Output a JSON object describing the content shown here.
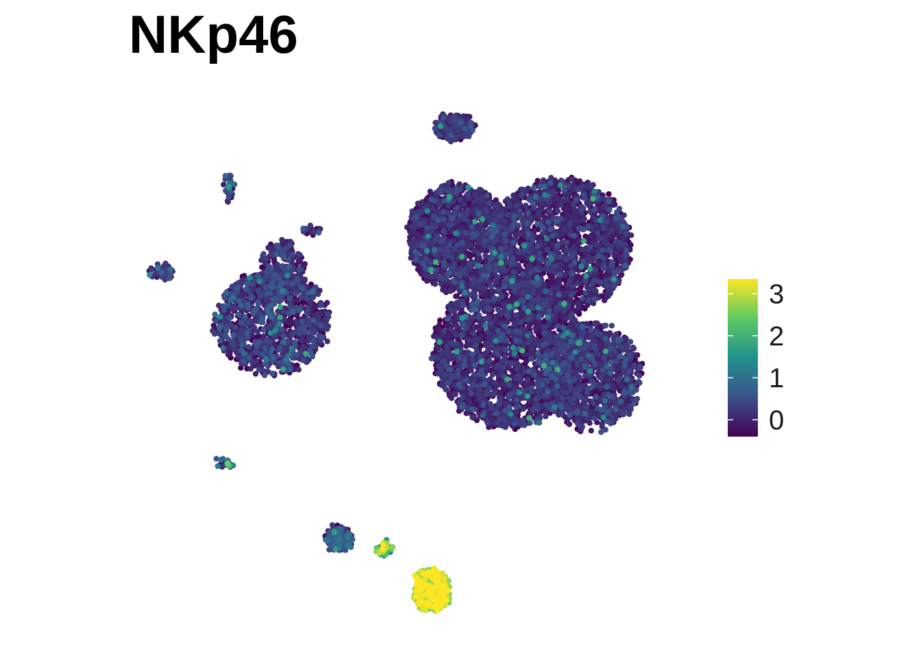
{
  "chart_data": {
    "type": "scatter",
    "title": "NKp46",
    "xlabel": "",
    "ylabel": "",
    "grid": false,
    "axes_visible": false,
    "legend_position": "right",
    "colorbar": {
      "min": -0.4,
      "max": 3.35,
      "ticks": [
        0,
        1,
        2,
        3
      ],
      "tick_labels": [
        "0",
        "1",
        "2",
        "3"
      ],
      "colors": [
        "#440154",
        "#3b528b",
        "#21918c",
        "#5ec962",
        "#fde725"
      ]
    },
    "clusters": [
      {
        "name": "top-small",
        "cx": 3.7,
        "cy": 8.6,
        "rx": 0.75,
        "ry": 0.45,
        "n": 220,
        "value": 0.0,
        "spread": 0.25
      },
      {
        "name": "main-upper-left",
        "cx": 3.9,
        "cy": 4.5,
        "rx": 2.0,
        "ry": 2.0,
        "n": 1500,
        "value": -0.1,
        "spread": 0.3
      },
      {
        "name": "main-upper-right",
        "cx": 8.0,
        "cy": 4.2,
        "rx": 2.8,
        "ry": 2.5,
        "n": 1900,
        "value": -0.1,
        "spread": 0.3
      },
      {
        "name": "main-lower",
        "cx": 5.9,
        "cy": 0.3,
        "rx": 3.0,
        "ry": 2.8,
        "n": 2200,
        "value": -0.1,
        "spread": 0.3
      },
      {
        "name": "main-lower-right",
        "cx": 9.2,
        "cy": -0.6,
        "rx": 2.0,
        "ry": 2.0,
        "n": 1100,
        "value": 0.0,
        "spread": 0.3
      },
      {
        "name": "left-cluster",
        "cx": -3.6,
        "cy": 1.4,
        "rx": 2.3,
        "ry": 1.9,
        "n": 1100,
        "value": 0.0,
        "spread": 0.35
      },
      {
        "name": "left-cluster-top",
        "cx": -3.2,
        "cy": 3.3,
        "rx": 0.9,
        "ry": 1.1,
        "n": 250,
        "value": 0.0,
        "spread": 0.3
      },
      {
        "name": "far-left-small",
        "cx": -8.0,
        "cy": 3.2,
        "rx": 0.5,
        "ry": 0.25,
        "n": 55,
        "value": 0.1,
        "spread": 0.3
      },
      {
        "name": "left-link",
        "cx": -5.3,
        "cy": 6.3,
        "rx": 0.15,
        "ry": 0.6,
        "n": 25,
        "value": 0.2,
        "spread": 0.4
      },
      {
        "name": "small-mid",
        "cx": -2.0,
        "cy": 4.8,
        "rx": 0.3,
        "ry": 0.15,
        "n": 20,
        "value": 0.0,
        "spread": 0.3
      },
      {
        "name": "bottom-left-tiny",
        "cx": -5.5,
        "cy": -3.8,
        "rx": 0.4,
        "ry": 0.15,
        "n": 20,
        "value": 0.6,
        "spread": 0.6
      },
      {
        "name": "bottom-small",
        "cx": -0.9,
        "cy": -6.6,
        "rx": 0.5,
        "ry": 0.45,
        "n": 140,
        "value": 0.4,
        "spread": 0.4
      },
      {
        "name": "nk-link",
        "cx": 0.9,
        "cy": -7.0,
        "rx": 0.3,
        "ry": 0.2,
        "n": 45,
        "value": 2.2,
        "spread": 0.7
      },
      {
        "name": "nk-cells",
        "cx": 2.8,
        "cy": -8.5,
        "rx": 0.7,
        "ry": 0.8,
        "n": 380,
        "value": 2.85,
        "spread": 0.5
      }
    ]
  }
}
